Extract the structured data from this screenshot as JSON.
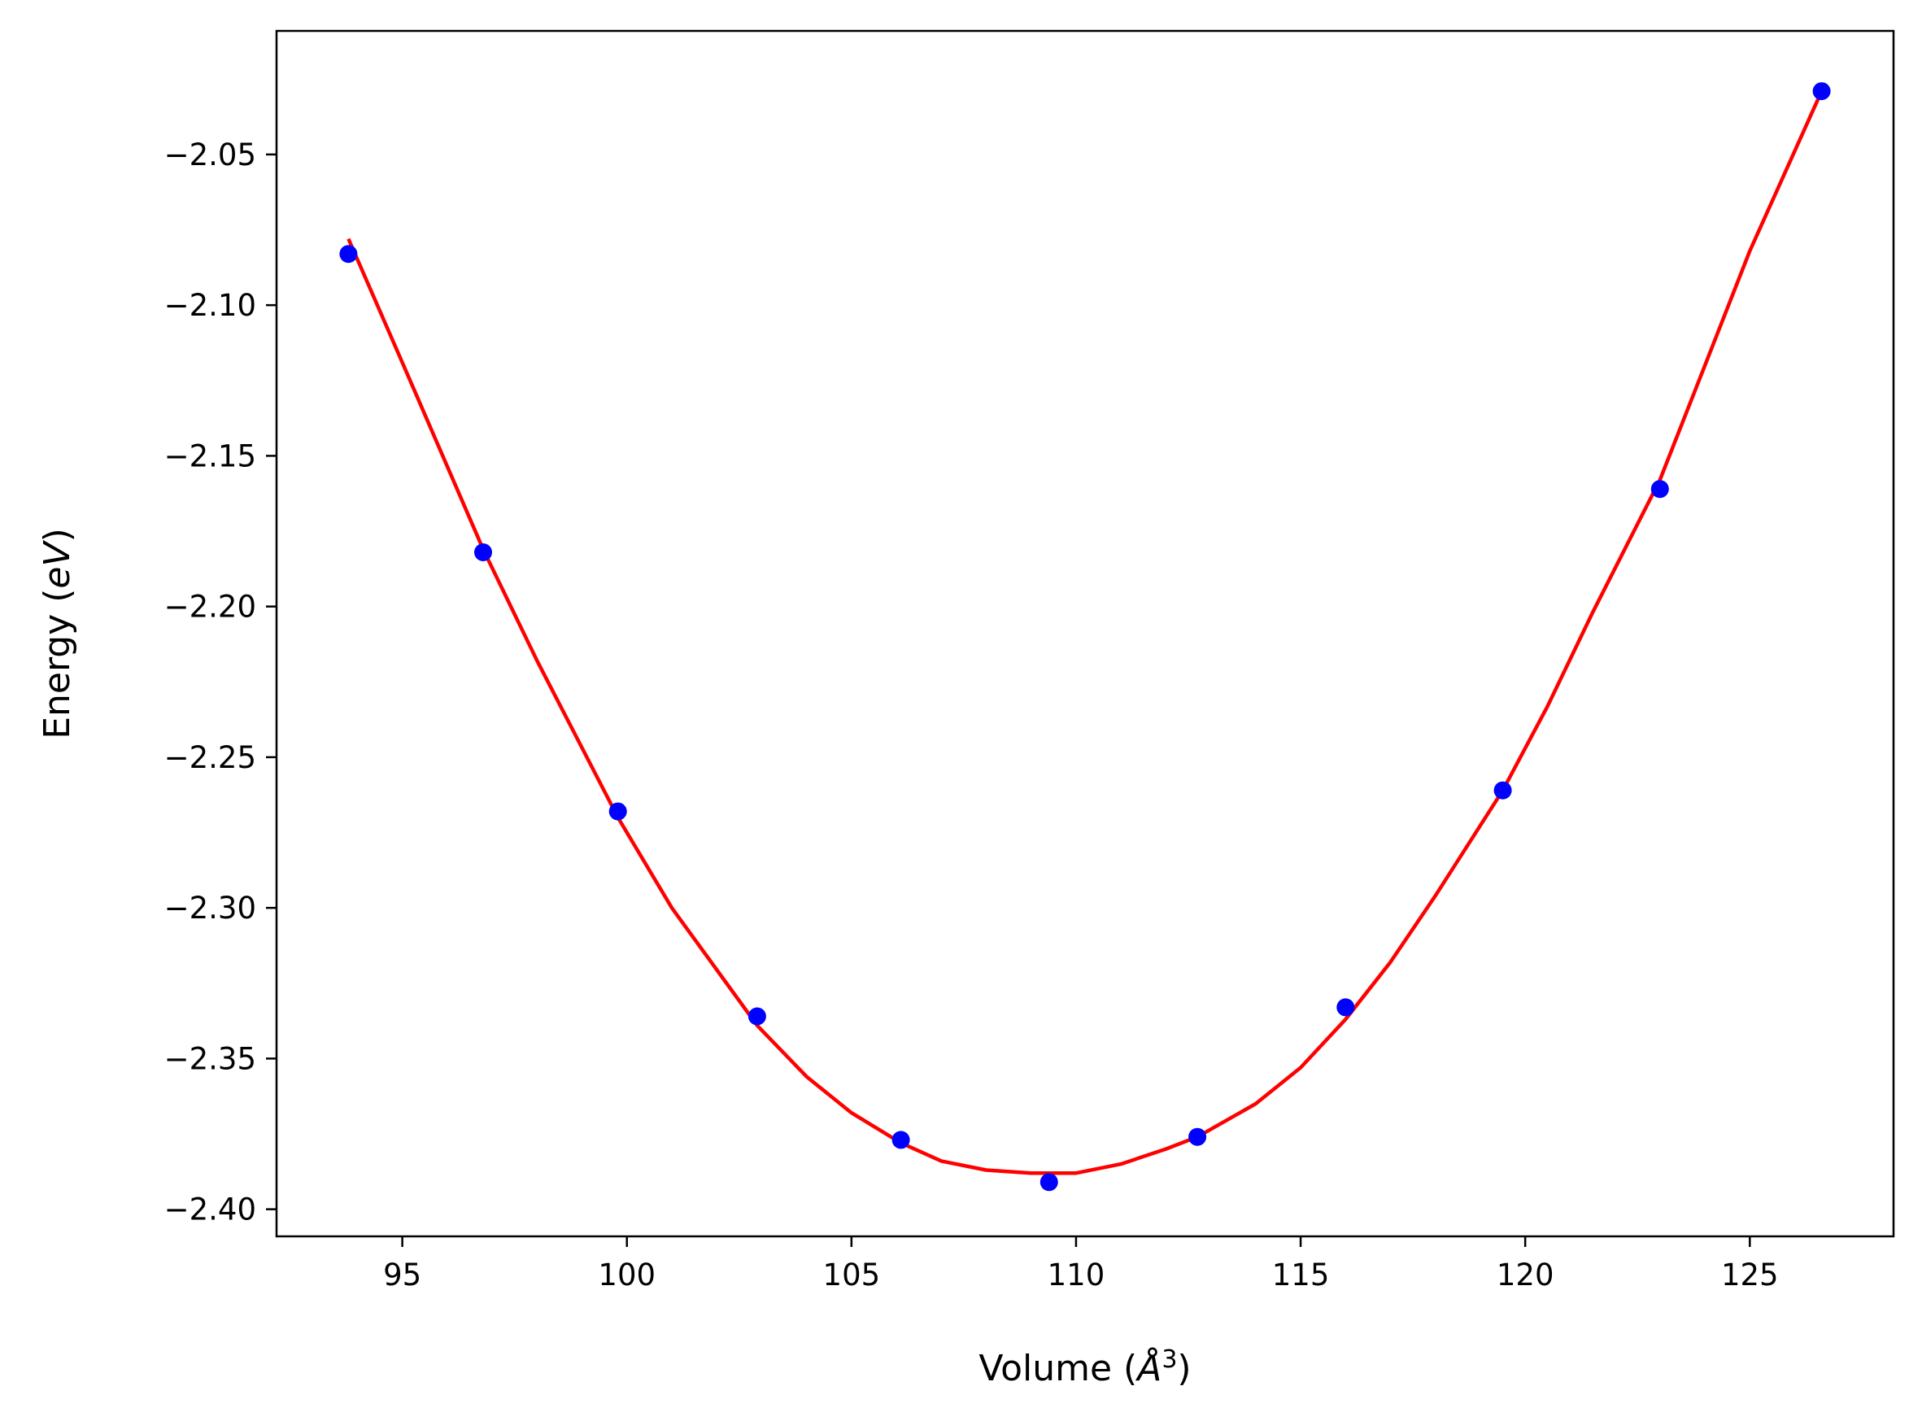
{
  "chart_data": {
    "type": "scatter",
    "title": "",
    "xlabel": {
      "prefix": "Volume (",
      "unit": "Å",
      "exponent": "3",
      "suffix": ")"
    },
    "ylabel": {
      "prefix": "Energy (",
      "unit": "eV",
      "suffix": ")"
    },
    "xlim": [
      92.2,
      128.2
    ],
    "ylim": [
      -2.409,
      -2.009
    ],
    "x_ticks": [
      95,
      100,
      105,
      110,
      115,
      120,
      125
    ],
    "x_tick_labels": [
      "95",
      "100",
      "105",
      "110",
      "115",
      "120",
      "125"
    ],
    "y_ticks": [
      -2.05,
      -2.1,
      -2.15,
      -2.2,
      -2.25,
      -2.3,
      -2.35,
      -2.4
    ],
    "y_tick_labels": [
      "−2.05",
      "−2.10",
      "−2.15",
      "−2.20",
      "−2.25",
      "−2.30",
      "−2.35",
      "−2.40"
    ],
    "grid": false,
    "series": [
      {
        "kind": "points",
        "color": "#0000ff",
        "x": [
          93.8,
          96.8,
          99.8,
          102.9,
          106.1,
          109.4,
          112.7,
          116.0,
          119.5,
          123.0,
          126.6
        ],
        "y": [
          -2.083,
          -2.182,
          -2.268,
          -2.336,
          -2.377,
          -2.391,
          -2.376,
          -2.333,
          -2.261,
          -2.161,
          -2.029
        ]
      },
      {
        "kind": "fit-curve",
        "color": "#ff0000",
        "x": [
          93.8,
          95.0,
          96.8,
          98.0,
          99.8,
          101.0,
          102.9,
          104.0,
          105.0,
          106.1,
          107.0,
          108.0,
          109.0,
          109.4,
          110.0,
          111.0,
          112.0,
          112.7,
          114.0,
          115.0,
          116.0,
          117.0,
          118.0,
          119.5,
          120.5,
          121.5,
          123.0,
          124.0,
          125.0,
          126.6
        ],
        "y": [
          -2.078,
          -2.119,
          -2.181,
          -2.218,
          -2.27,
          -2.3,
          -2.339,
          -2.356,
          -2.368,
          -2.378,
          -2.384,
          -2.387,
          -2.388,
          -2.388,
          -2.388,
          -2.385,
          -2.38,
          -2.376,
          -2.365,
          -2.353,
          -2.337,
          -2.318,
          -2.296,
          -2.261,
          -2.233,
          -2.202,
          -2.158,
          -2.12,
          -2.082,
          -2.029
        ]
      }
    ]
  }
}
